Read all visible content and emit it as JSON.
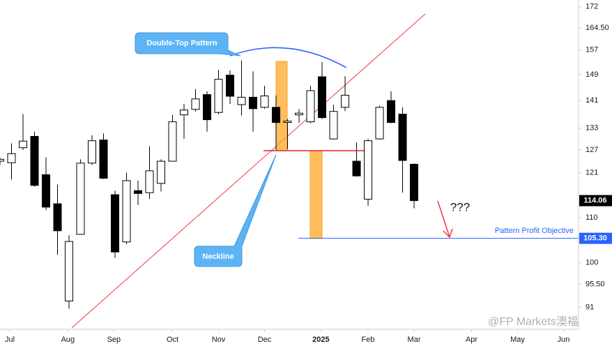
{
  "chart_data": {
    "type": "candlestick",
    "log_scale": true,
    "up_color": "#ffffff",
    "down_color": "#000000",
    "open": [
      124,
      123.6,
      127.6,
      130.7,
      120.5,
      113.3,
      92.2,
      106.2,
      123.5,
      129.7,
      115.5,
      104.5,
      116.5,
      116,
      118.3,
      124,
      136.8,
      138.4,
      142.8,
      137.5,
      148.8,
      139.8,
      142,
      139,
      139,
      134.6,
      136.8,
      134.8,
      148.3,
      130,
      139,
      124,
      114.4,
      130,
      141,
      137,
      123.2
    ],
    "high": [
      125,
      128.8,
      137,
      132,
      125,
      118,
      106,
      124.5,
      131,
      131.5,
      116.5,
      121,
      119,
      128,
      124.5,
      136.8,
      140,
      144.5,
      143.8,
      150.5,
      150.3,
      153.5,
      150,
      145.5,
      142.5,
      135.6,
      138.5,
      145.5,
      153,
      139.8,
      148.5,
      129,
      130,
      139.5,
      143.8,
      139,
      123.4
    ],
    "low": [
      123,
      119.3,
      127,
      117.5,
      111.8,
      101.7,
      90.7,
      106.2,
      123,
      119.4,
      101,
      104,
      113,
      114.5,
      116.3,
      124,
      130,
      137.8,
      132,
      137,
      140,
      136.6,
      132,
      138.6,
      127,
      127.2,
      134.5,
      134.4,
      135.6,
      129.8,
      137.9,
      120,
      112.8,
      129.8,
      134.4,
      116,
      112.2
    ],
    "close": [
      124.5,
      126,
      129.4,
      117.8,
      112.5,
      107,
      104.6,
      123.5,
      129.5,
      119.6,
      102.3,
      119,
      115.8,
      121.5,
      124,
      134.8,
      138.2,
      141.5,
      135.4,
      147.5,
      142.3,
      142,
      138.6,
      142.4,
      134.6,
      135,
      137.3,
      144,
      136,
      137.8,
      142.6,
      120.2,
      129.5,
      139,
      134.6,
      124.2,
      114.06
    ],
    "ylim": [
      87.1,
      174.5
    ],
    "yticks": [
      91,
      {
        "value": 95.5,
        "label": "95.50"
      },
      100,
      110,
      121,
      127,
      133,
      141,
      149,
      157,
      {
        "value": 164.5,
        "label": "164.50"
      },
      172
    ],
    "xlim": [
      0,
      50.3
    ],
    "xticks": [
      {
        "value": 0.85,
        "label": "Jul"
      },
      {
        "value": 5.9,
        "label": "Aug"
      },
      {
        "value": 9.9,
        "label": "Sep"
      },
      {
        "value": 15,
        "label": "Oct"
      },
      {
        "value": 19,
        "label": "Nov"
      },
      {
        "value": 23,
        "label": "Dec"
      },
      {
        "value": 27.9,
        "label": "2025"
      },
      {
        "value": 32,
        "label": "Feb"
      },
      {
        "value": 36,
        "label": "Mar"
      },
      {
        "value": 41,
        "label": "Apr"
      },
      {
        "value": 45,
        "label": "May"
      },
      {
        "value": 49,
        "label": "Jun"
      }
    ],
    "price_labels": [
      114.06,
      {
        "value": 105.3,
        "label": "105.30"
      }
    ],
    "annotations": [
      "Double-Top Pattern",
      "Neckline",
      "Pattern Profit Objective",
      "???"
    ],
    "watermark": "@FP Markets澳福"
  }
}
